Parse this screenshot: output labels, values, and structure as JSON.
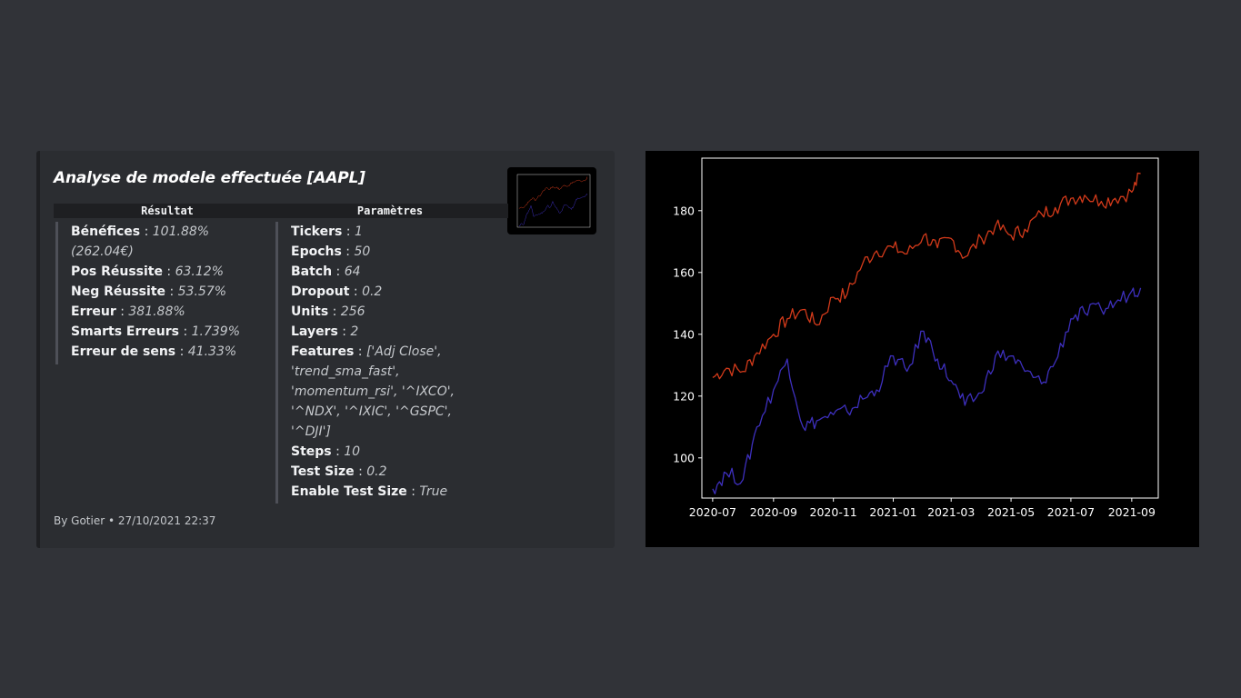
{
  "embed": {
    "title": "Analyse de modele effectuée [AAPL]",
    "result_header": "Résultat",
    "params_header": "Paramètres",
    "results": [
      {
        "key": "Bénéfices",
        "value": "101.88% (262.04€)"
      },
      {
        "key": "Pos Réussite",
        "value": "63.12%"
      },
      {
        "key": "Neg Réussite",
        "value": "53.57%"
      },
      {
        "key": "Erreur",
        "value": "381.88%"
      },
      {
        "key": "Smarts Erreurs",
        "value": "1.739%"
      },
      {
        "key": "Erreur de sens",
        "value": "41.33%"
      }
    ],
    "params": [
      {
        "key": "Tickers",
        "value": "1"
      },
      {
        "key": "Epochs",
        "value": "50"
      },
      {
        "key": "Batch",
        "value": "64"
      },
      {
        "key": "Dropout",
        "value": "0.2"
      },
      {
        "key": "Units",
        "value": "256"
      },
      {
        "key": "Layers",
        "value": "2"
      },
      {
        "key": "Features",
        "value": "['Adj Close', 'trend_sma_fast', 'momentum_rsi', '^IXCO', '^NDX', '^IXIC', '^GSPC', '^DJI']"
      },
      {
        "key": "Steps",
        "value": "10"
      },
      {
        "key": "Test Size",
        "value": "0.2"
      },
      {
        "key": "Enable Test Size",
        "value": "True"
      }
    ],
    "footer": "By Gotier • 27/10/2021 22:37"
  },
  "chart_data": {
    "type": "line",
    "title": "",
    "xlabel": "",
    "ylabel": "",
    "x_ticks": [
      "2020-07",
      "2020-09",
      "2020-11",
      "2021-01",
      "2021-03",
      "2021-05",
      "2021-07",
      "2021-09"
    ],
    "y_ticks": [
      100,
      120,
      140,
      160,
      180
    ],
    "ylim": [
      87,
      197
    ],
    "grid": false,
    "series": [
      {
        "color": "#d33a1a",
        "x": [
          "2020-07-01",
          "2020-07-15",
          "2020-08-01",
          "2020-08-15",
          "2020-09-01",
          "2020-09-15",
          "2020-10-01",
          "2020-10-15",
          "2020-11-01",
          "2020-11-15",
          "2020-12-01",
          "2020-12-15",
          "2021-01-01",
          "2021-01-15",
          "2021-02-01",
          "2021-02-15",
          "2021-03-01",
          "2021-03-15",
          "2021-04-01",
          "2021-04-15",
          "2021-05-01",
          "2021-05-15",
          "2021-06-01",
          "2021-06-15",
          "2021-07-01",
          "2021-07-15",
          "2021-08-01",
          "2021-08-15",
          "2021-09-01",
          "2021-09-10"
        ],
        "values": [
          126,
          129,
          128,
          134,
          140,
          145,
          148,
          143,
          152,
          153,
          163,
          167,
          168,
          166,
          172,
          168,
          171,
          165,
          171,
          175,
          172,
          174,
          179,
          181,
          184,
          185,
          183,
          184,
          186,
          192
        ]
      },
      {
        "color": "#3d2fbd",
        "x": [
          "2020-07-01",
          "2020-07-15",
          "2020-08-01",
          "2020-08-15",
          "2020-09-01",
          "2020-09-15",
          "2020-10-01",
          "2020-10-15",
          "2020-11-01",
          "2020-11-15",
          "2020-12-01",
          "2020-12-15",
          "2021-01-01",
          "2021-01-15",
          "2021-02-01",
          "2021-02-15",
          "2021-03-01",
          "2021-03-15",
          "2021-04-01",
          "2021-04-15",
          "2021-05-01",
          "2021-05-15",
          "2021-06-01",
          "2021-06-15",
          "2021-07-01",
          "2021-07-15",
          "2021-08-01",
          "2021-08-15",
          "2021-09-01",
          "2021-09-10"
        ],
        "values": [
          90,
          95,
          93,
          110,
          122,
          132,
          110,
          112,
          114,
          115,
          119,
          122,
          133,
          128,
          141,
          132,
          125,
          117,
          121,
          133,
          133,
          128,
          124,
          131,
          145,
          147,
          148,
          150,
          154,
          155
        ]
      }
    ]
  }
}
